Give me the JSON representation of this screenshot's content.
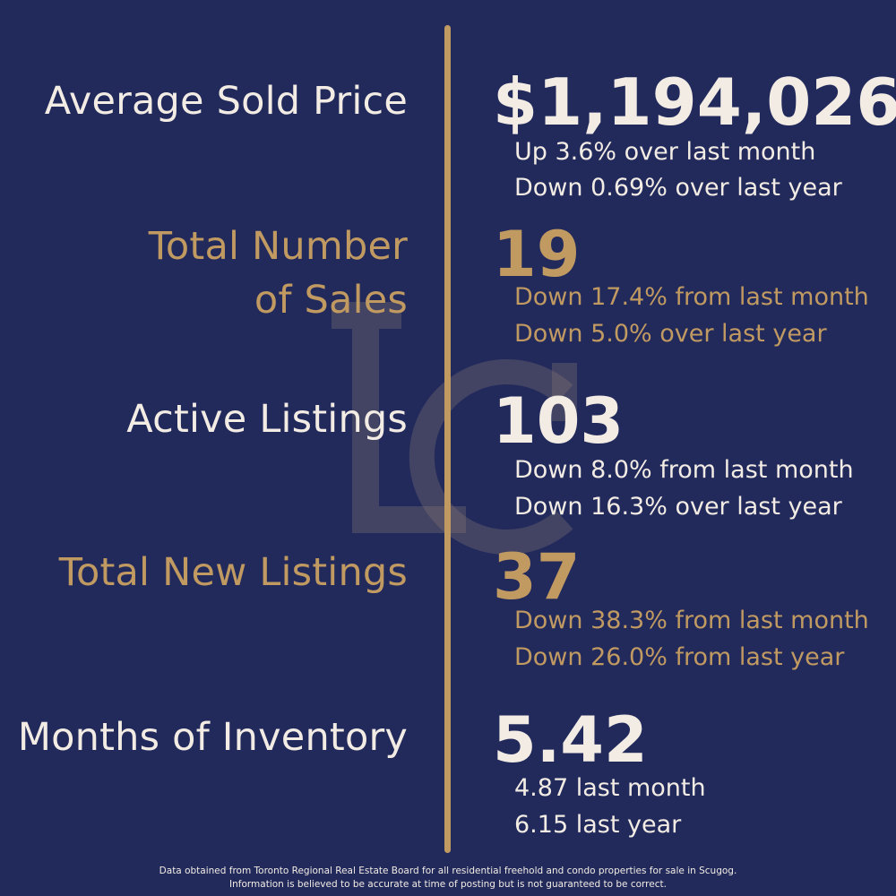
{
  "colors": {
    "background": "#222a5c",
    "light": "#f2ece4",
    "gold": "#c19a62"
  },
  "logo": {
    "icon": "lc-monogram-watermark-icon"
  },
  "stats": {
    "avg_price": {
      "label": "Average Sold Price",
      "value": "$1,194,026",
      "line1": "Up 3.6% over last month",
      "line2": "Down 0.69% over last year"
    },
    "total_sales": {
      "label_line1": "Total Number",
      "label_line2": "of Sales",
      "value": "19",
      "line1": "Down 17.4% from last month",
      "line2": "Down 5.0% over last year"
    },
    "active_listings": {
      "label": "Active Listings",
      "value": "103",
      "line1": "Down 8.0% from last month",
      "line2": "Down 16.3% over last year"
    },
    "new_listings": {
      "label": "Total New Listings",
      "value": "37",
      "line1": "Down 38.3% from last month",
      "line2": "Down 26.0% from last year"
    },
    "inventory": {
      "label": "Months of Inventory",
      "value": "5.42",
      "line1": "4.87 last month",
      "line2": "6.15 last year"
    }
  },
  "footer": {
    "line1": "Data obtained from Toronto Regional Real Estate Board for all residential freehold and condo properties for sale in Scugog.",
    "line2": "Information is believed to be accurate at time of posting but is not guaranteed to be correct."
  }
}
